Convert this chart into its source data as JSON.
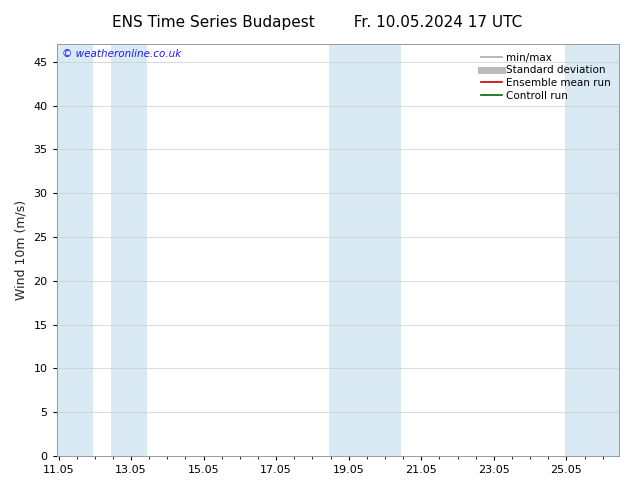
{
  "title_left": "ENS Time Series Budapest",
  "title_right": "Fr. 10.05.2024 17 UTC",
  "ylabel": "Wind 10m (m/s)",
  "watermark": "© weatheronline.co.uk",
  "xlim_start": 11.0,
  "xlim_end": 26.5,
  "ylim": [
    0,
    47
  ],
  "yticks": [
    0,
    5,
    10,
    15,
    20,
    25,
    30,
    35,
    40,
    45
  ],
  "xtick_positions": [
    11.05,
    13.05,
    15.05,
    17.05,
    19.05,
    21.05,
    23.05,
    25.05
  ],
  "xticklabels": [
    "11.05",
    "13.05",
    "15.05",
    "17.05",
    "19.05",
    "21.05",
    "23.05",
    "25.05"
  ],
  "shade_bands": [
    [
      11.0,
      12.0
    ],
    [
      12.5,
      13.5
    ],
    [
      18.5,
      19.5
    ],
    [
      19.5,
      20.5
    ],
    [
      25.0,
      25.8
    ],
    [
      25.8,
      26.5
    ]
  ],
  "shade_color": "#daeaf5",
  "bg_color": "#ffffff",
  "grid_color": "#cccccc",
  "legend_items": [
    {
      "label": "min/max",
      "color": "#aaaaaa",
      "lw": 1.2,
      "ls": "-"
    },
    {
      "label": "Standard deviation",
      "color": "#bbbbbb",
      "lw": 5,
      "ls": "-"
    },
    {
      "label": "Ensemble mean run",
      "color": "#cc0000",
      "lw": 1.2,
      "ls": "-"
    },
    {
      "label": "Controll run",
      "color": "#006600",
      "lw": 1.2,
      "ls": "-"
    }
  ],
  "watermark_color": "#1a1aff",
  "title_fontsize": 11,
  "tick_fontsize": 8,
  "ylabel_fontsize": 9,
  "legend_fontsize": 7.5
}
